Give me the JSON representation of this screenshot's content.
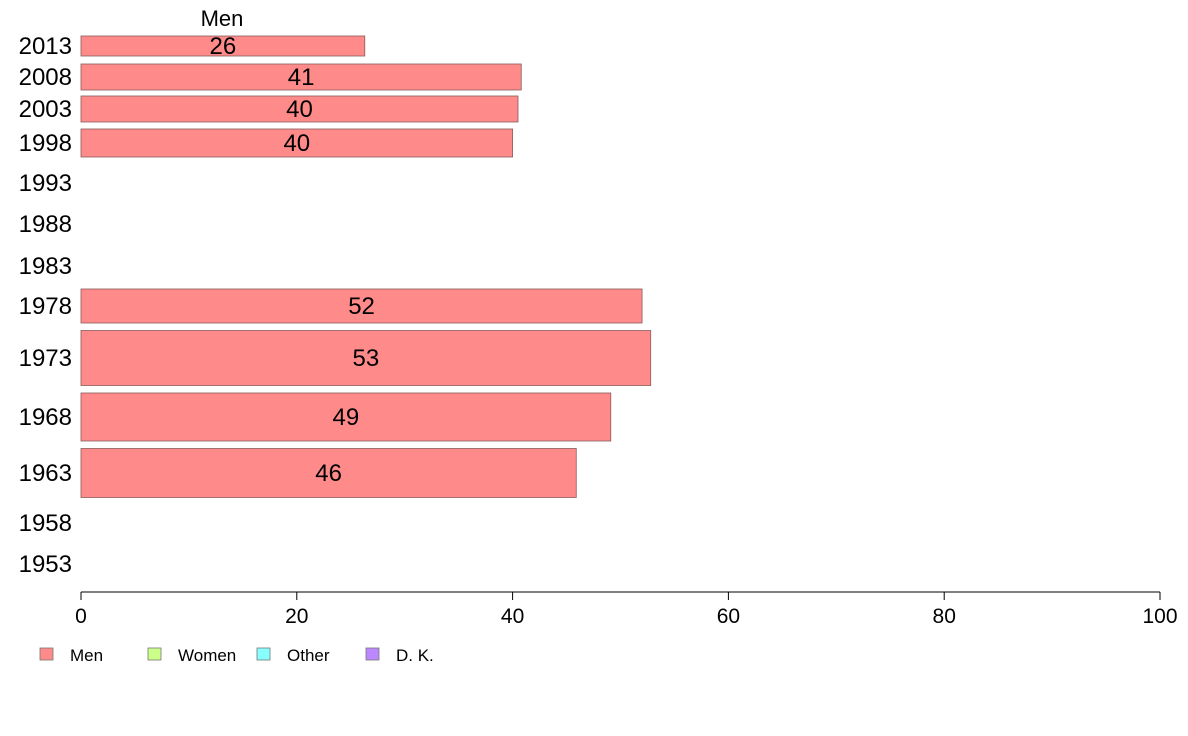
{
  "chart_data": {
    "type": "bar",
    "orientation": "horizontal",
    "stacked": true,
    "title": "",
    "xlabel": "",
    "ylabel": "",
    "xlim": [
      0,
      100
    ],
    "x_ticks": [
      "0",
      "20",
      "40",
      "60",
      "80",
      "100"
    ],
    "grid": false,
    "legend_position": "bottom-left",
    "categories": [
      "2013",
      "2008",
      "2003",
      "1998",
      "1993",
      "1988",
      "1983",
      "1978",
      "1973",
      "1968",
      "1963",
      "1958",
      "1953"
    ],
    "series": [
      {
        "name": "Men",
        "color": "#ff8a8a",
        "values": [
          26.3,
          40.8,
          40.5,
          40.0,
          null,
          null,
          null,
          52.0,
          52.8,
          49.1,
          45.9,
          null,
          null
        ],
        "labels": [
          "26",
          "41",
          "40",
          "40",
          "",
          "",
          "",
          "52",
          "53",
          "49",
          "46",
          "",
          ""
        ]
      },
      {
        "name": "Women",
        "color": "#ccff88",
        "values": [
          null,
          null,
          null,
          null,
          null,
          null,
          null,
          null,
          null,
          null,
          null,
          null,
          null
        ],
        "labels": []
      },
      {
        "name": "Other",
        "color": "#88ffff",
        "values": [
          null,
          null,
          null,
          null,
          null,
          null,
          null,
          null,
          null,
          null,
          null,
          null,
          null
        ],
        "labels": []
      },
      {
        "name": "D. K.",
        "color": "#bb88ff",
        "values": [
          null,
          null,
          null,
          null,
          null,
          null,
          null,
          null,
          null,
          null,
          null,
          null,
          null
        ],
        "labels": []
      }
    ],
    "top_series_label": "Men"
  }
}
